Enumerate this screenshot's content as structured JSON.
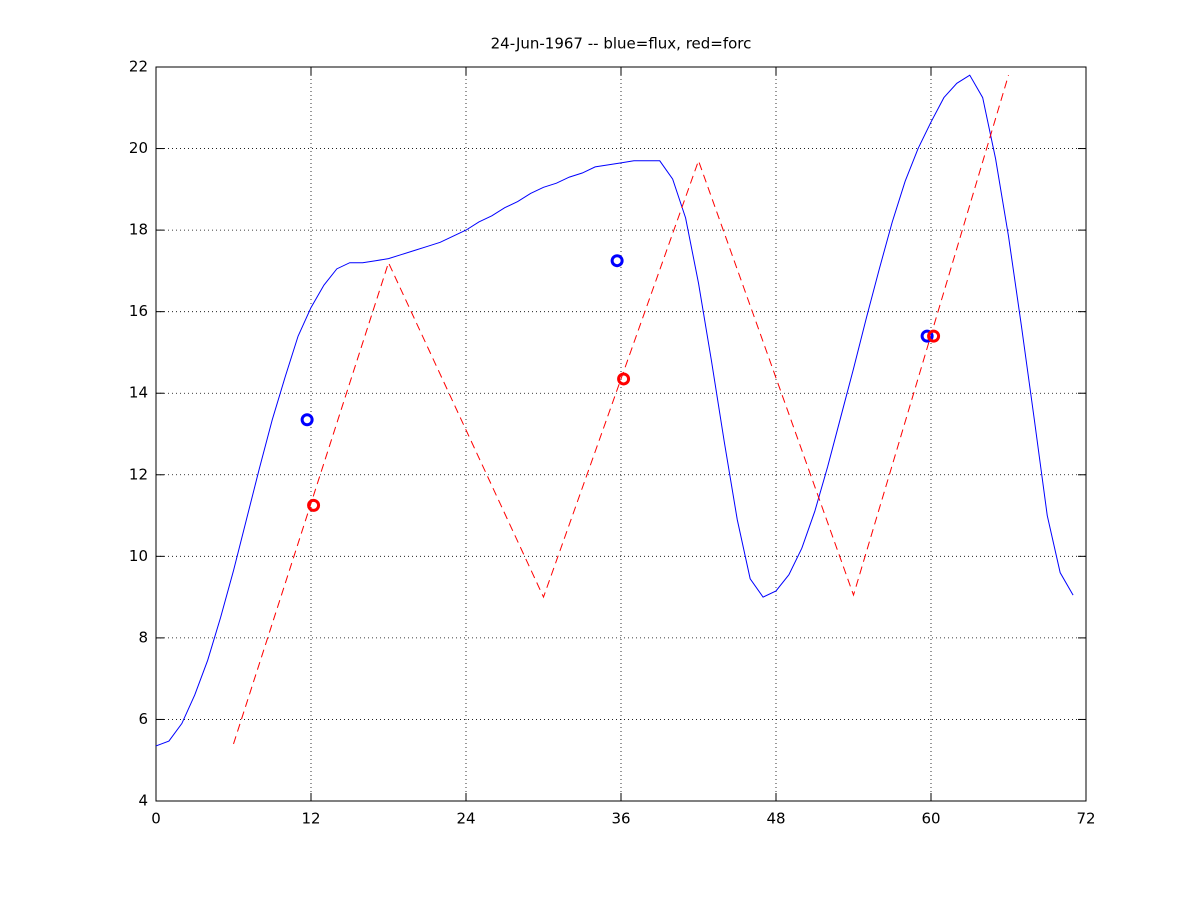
{
  "chart_data": {
    "type": "line",
    "title": "24-Jun-1967 -- blue=flux, red=forc",
    "xlim": [
      0,
      72
    ],
    "xticks": [
      0,
      12,
      24,
      36,
      48,
      60,
      72
    ],
    "ylim": [
      4,
      22
    ],
    "yticks": [
      4,
      6,
      8,
      10,
      12,
      14,
      16,
      18,
      20,
      22
    ],
    "grid": true,
    "series": [
      {
        "color": "#0000ff",
        "style": "solid",
        "marker": "none",
        "x": [
          0,
          1,
          2,
          3,
          4,
          5,
          6,
          7,
          8,
          9,
          10,
          11,
          12,
          13,
          14,
          15,
          16,
          17,
          18,
          19,
          20,
          21,
          22,
          23,
          24,
          25,
          26,
          27,
          28,
          29,
          30,
          31,
          32,
          33,
          34,
          35,
          36,
          37,
          38,
          39,
          40,
          41,
          42,
          43,
          44,
          45,
          46,
          47,
          48,
          49,
          50,
          51,
          52,
          53,
          54,
          55,
          56,
          57,
          58,
          59,
          60,
          61,
          62,
          63,
          64,
          65,
          66,
          67,
          68,
          69,
          70,
          71
        ],
        "values": [
          5.35,
          5.47,
          5.9,
          6.6,
          7.45,
          8.5,
          9.65,
          10.9,
          12.15,
          13.35,
          14.4,
          15.4,
          16.1,
          16.65,
          17.05,
          17.2,
          17.2,
          17.25,
          17.3,
          17.4,
          17.5,
          17.6,
          17.7,
          17.85,
          18.0,
          18.2,
          18.35,
          18.55,
          18.7,
          18.9,
          19.05,
          19.15,
          19.3,
          19.4,
          19.55,
          19.6,
          19.65,
          19.7,
          19.7,
          19.7,
          19.25,
          18.3,
          16.7,
          14.8,
          12.8,
          10.9,
          9.45,
          9.0,
          9.15,
          9.55,
          10.2,
          11.1,
          12.2,
          13.4,
          14.6,
          15.85,
          17.05,
          18.2,
          19.2,
          20.0,
          20.65,
          21.25,
          21.6,
          21.8,
          21.25,
          19.75,
          17.85,
          15.65,
          13.35,
          11.0,
          9.6,
          9.05
        ]
      },
      {
        "color": "#ff0000",
        "style": "dashed",
        "marker": "none",
        "x": [
          6,
          18,
          30,
          42,
          54,
          66
        ],
        "values": [
          5.4,
          17.2,
          9.0,
          19.7,
          9.05,
          21.8
        ]
      },
      {
        "color": "#0000ff",
        "style": "none",
        "marker": "circle",
        "x": [
          11.7,
          35.7,
          59.7
        ],
        "values": [
          13.35,
          17.25,
          15.4
        ]
      },
      {
        "color": "#ff0000",
        "style": "none",
        "marker": "circle",
        "x": [
          12.2,
          36.2,
          60.2
        ],
        "values": [
          11.25,
          14.35,
          15.4
        ]
      }
    ]
  }
}
